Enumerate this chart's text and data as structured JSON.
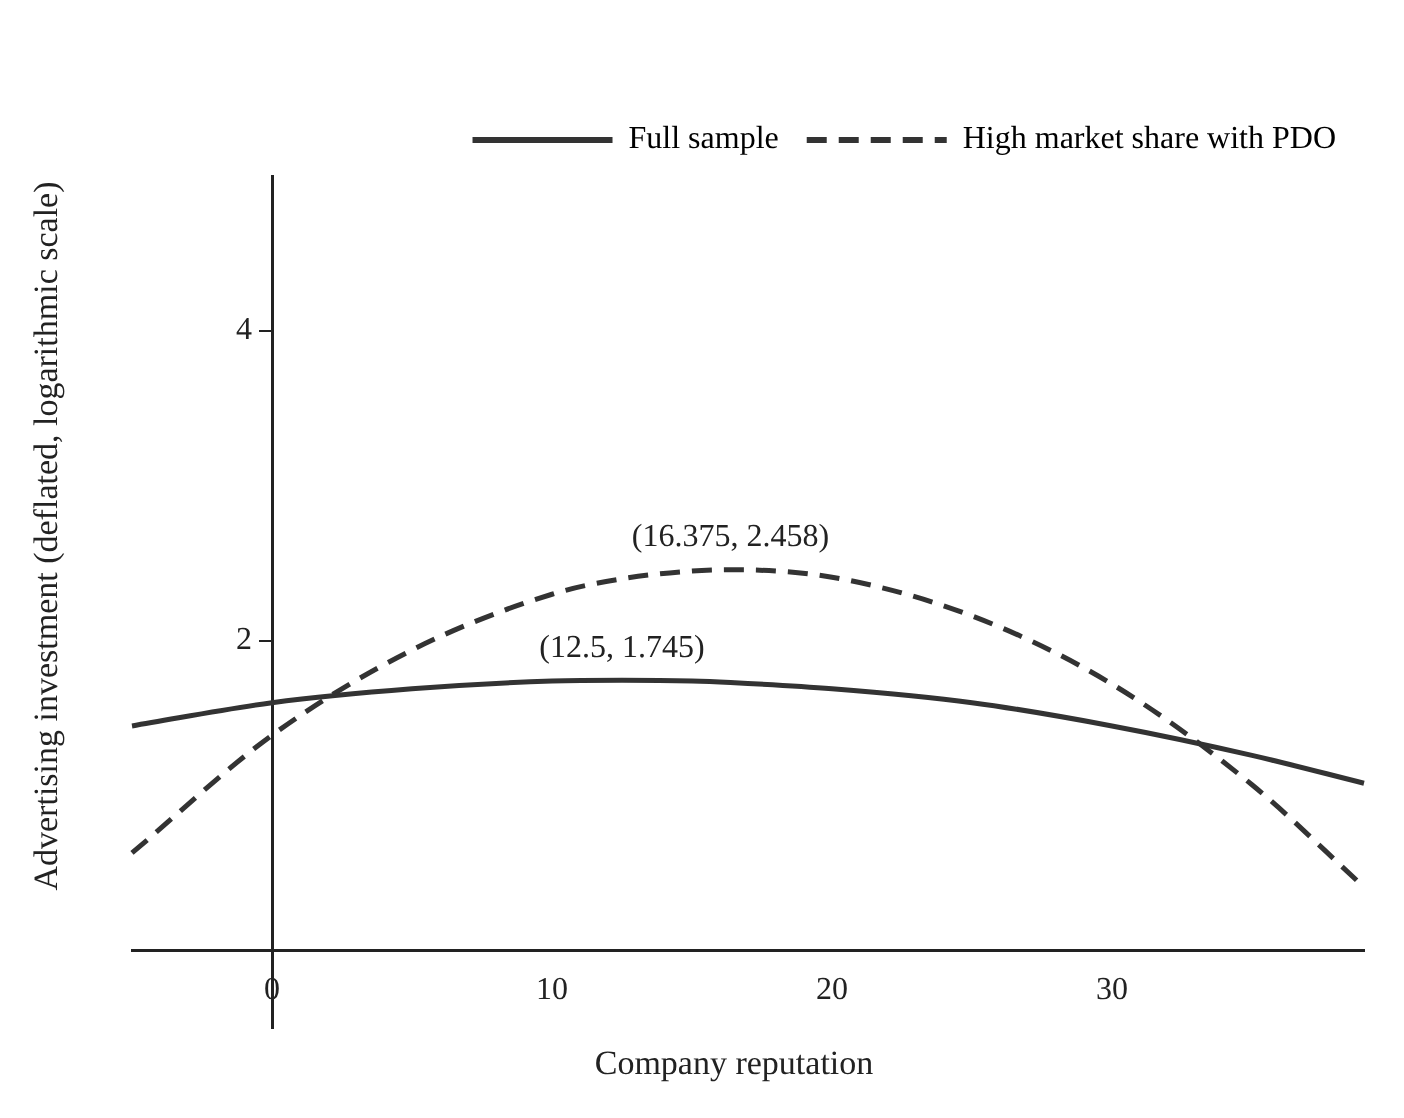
{
  "chart_data": {
    "type": "line",
    "xlabel": "Company reputation",
    "ylabel": "Advertising investment (deflated, logarithmic scale)",
    "x": [
      -5,
      0,
      5,
      10,
      12.5,
      15,
      16.375,
      20,
      25,
      30,
      35,
      39
    ],
    "series": [
      {
        "name": "Full sample",
        "color": "#333333",
        "line_style": "solid",
        "values": [
          1.45,
          1.6,
          1.69,
          1.74,
          1.745,
          1.74,
          1.73,
          1.69,
          1.6,
          1.45,
          1.26,
          1.08
        ]
      },
      {
        "name": "High market share with PDO",
        "color": "#333333",
        "line_style": "dashed",
        "values": [
          0.63,
          1.39,
          1.94,
          2.3,
          2.4,
          2.45,
          2.458,
          2.41,
          2.16,
          1.72,
          1.07,
          0.41
        ]
      }
    ],
    "xlim": [
      -5,
      39
    ],
    "xticks": [
      0,
      10,
      20,
      30
    ],
    "ylim": [
      -0.5,
      5
    ],
    "yticks": [
      2,
      4
    ],
    "annotations": [
      {
        "text": "(16.375, 2.458)",
        "x": 16.375,
        "y": 2.458
      },
      {
        "text": "(12.5, 1.745)",
        "x": 12.5,
        "y": 1.745
      }
    ],
    "legend": "top right",
    "grid": false,
    "marker": "none"
  }
}
